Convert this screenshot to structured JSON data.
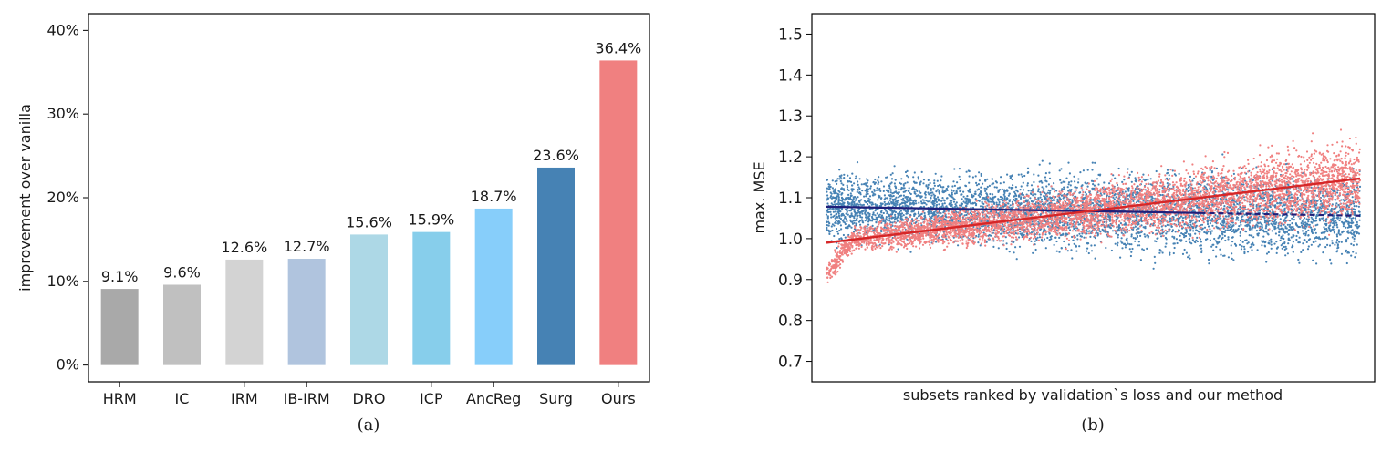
{
  "chart_data": [
    {
      "type": "bar",
      "title": "",
      "xlabel": "",
      "ylabel": "improvement over vanilla",
      "caption": "(a)",
      "ylim": [
        -2,
        42
      ],
      "yticks": [
        0,
        10,
        20,
        30,
        40
      ],
      "ytick_labels": [
        "0%",
        "10%",
        "20%",
        "30%",
        "40%"
      ],
      "categories": [
        "HRM",
        "IC",
        "IRM",
        "IB-IRM",
        "DRO",
        "ICP",
        "AncReg",
        "Surg",
        "Ours"
      ],
      "values": [
        9.1,
        9.6,
        12.6,
        12.7,
        15.6,
        15.9,
        18.7,
        23.6,
        36.4
      ],
      "value_labels": [
        "9.1%",
        "9.6%",
        "12.6%",
        "12.7%",
        "15.6%",
        "15.9%",
        "18.7%",
        "23.6%",
        "36.4%"
      ],
      "colors": [
        "#a9a9a9",
        "#c0c0c0",
        "#d3d3d3",
        "#b0c4de",
        "#add8e6",
        "#87ceeb",
        "#87cefa",
        "#4682b4",
        "#f08080"
      ],
      "grid": false,
      "legend": "none"
    },
    {
      "type": "scatter",
      "title": "",
      "xlabel": "subsets ranked by validation`s loss and our method",
      "ylabel": "max. MSE",
      "caption": "(b)",
      "xlim": [
        0,
        1
      ],
      "ylim": [
        0.65,
        1.55
      ],
      "yticks": [
        0.7,
        0.8,
        0.9,
        1.0,
        1.1,
        1.2,
        1.3,
        1.4,
        1.5
      ],
      "ytick_labels": [
        "0.7",
        "0.8",
        "0.9",
        "1.0",
        "1.1",
        "1.2",
        "1.3",
        "1.4",
        "1.5"
      ],
      "xticks": [],
      "grid": false,
      "legend": "none",
      "series": [
        {
          "color": "#4682b4",
          "trend": {
            "color": "#1f1f7a",
            "style": "solid-then-dashed",
            "points": [
              [
                0.0,
                1.078
              ],
              [
                1.0,
                1.056
              ]
            ]
          }
        },
        {
          "color": "#f08080",
          "trend": {
            "color": "#d62728",
            "style": "solid",
            "points": [
              [
                0.0,
                0.99
              ],
              [
                1.0,
                1.147
              ]
            ]
          }
        }
      ]
    }
  ]
}
